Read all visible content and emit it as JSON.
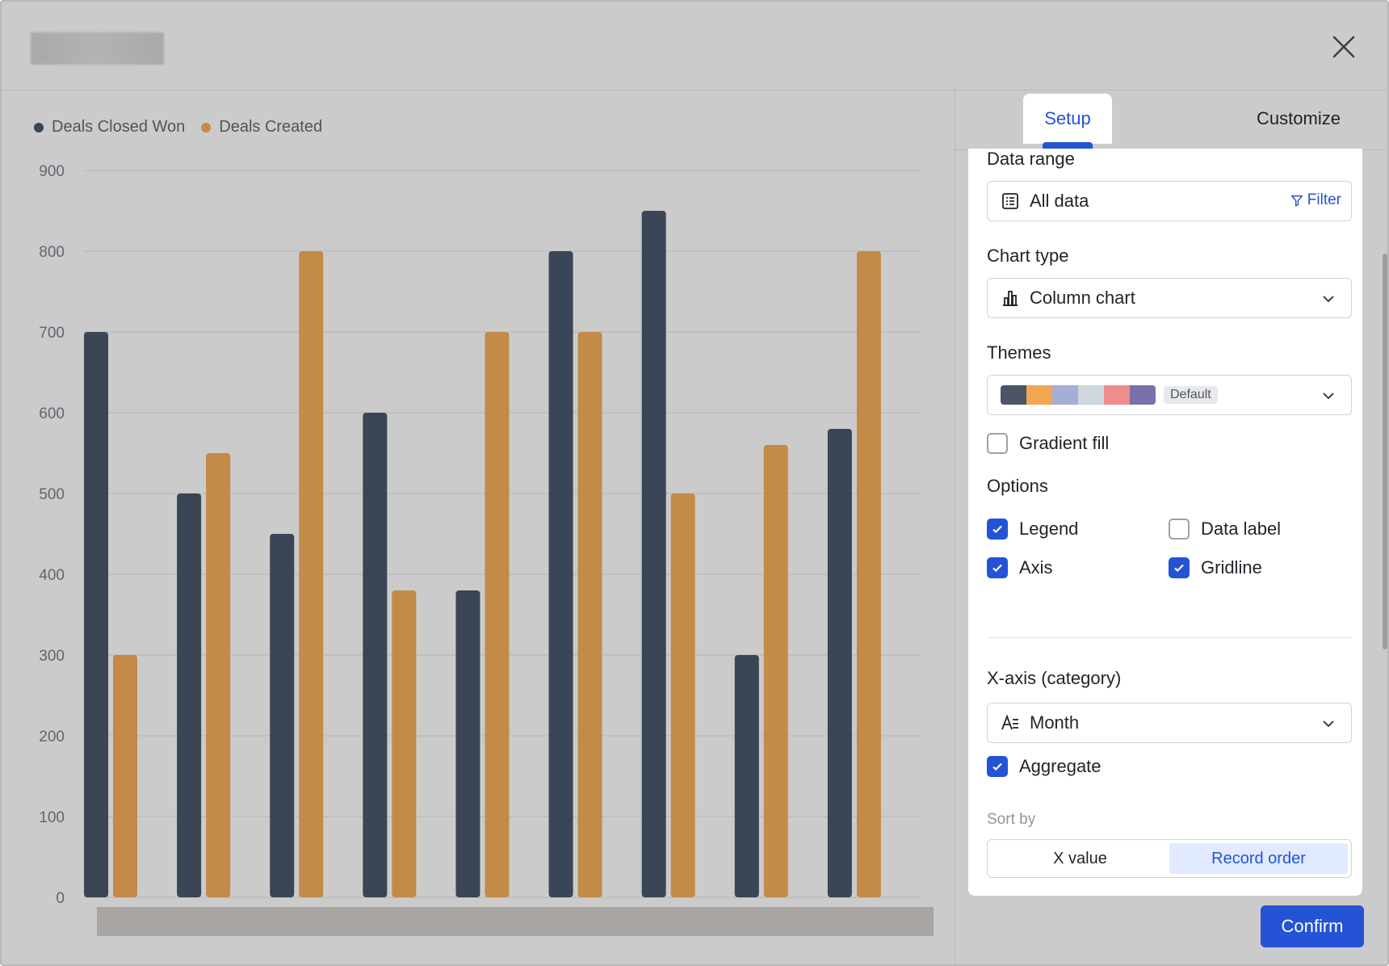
{
  "legend": {
    "series_1": "Deals Closed Won",
    "series_2": "Deals Created"
  },
  "chart_data": {
    "type": "bar",
    "categories": [
      "",
      "",
      "",
      "",
      "",
      "",
      "",
      "",
      ""
    ],
    "series": [
      {
        "name": "Deals Closed Won",
        "color": "#3a4556",
        "values": [
          700,
          500,
          450,
          600,
          380,
          800,
          850,
          300,
          580
        ]
      },
      {
        "name": "Deals Created",
        "color": "#c48a48",
        "values": [
          300,
          550,
          800,
          380,
          700,
          700,
          500,
          560,
          800
        ]
      }
    ],
    "yticks": [
      "0",
      "100",
      "200",
      "300",
      "400",
      "500",
      "600",
      "700",
      "800",
      "900"
    ],
    "ylim": [
      0,
      900
    ],
    "grid": true
  },
  "tabs": {
    "setup": "Setup",
    "customize": "Customize"
  },
  "panel": {
    "data_range_label": "Data range",
    "data_range_value": "All data",
    "filter_label": "Filter",
    "chart_type_label": "Chart type",
    "chart_type_value": "Column chart",
    "themes_label": "Themes",
    "theme_badge": "Default",
    "theme_colors": [
      "#4b5566",
      "#f2a654",
      "#a3afd6",
      "#cfd6de",
      "#ef8c8c",
      "#7a71aa"
    ],
    "gradient_fill": "Gradient fill",
    "options_label": "Options",
    "legend_opt": "Legend",
    "data_label_opt": "Data label",
    "axis_opt": "Axis",
    "gridline_opt": "Gridline",
    "xaxis_label": "X-axis (category)",
    "xaxis_value": "Month",
    "aggregate": "Aggregate",
    "sort_by": "Sort by",
    "sort_x": "X value",
    "sort_record": "Record order"
  },
  "confirm": "Confirm"
}
